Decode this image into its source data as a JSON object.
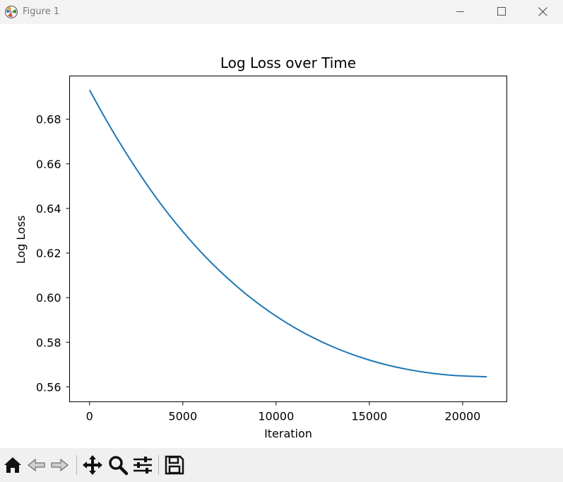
{
  "window": {
    "title": "Figure 1"
  },
  "icons": {
    "app": "matplotlib-logo-icon",
    "minimize": "minimize-icon",
    "maximize": "maximize-icon",
    "close": "close-icon"
  },
  "toolbar": {
    "buttons": [
      "home-icon",
      "back-arrow-icon",
      "forward-arrow-icon",
      "pan-move-icon",
      "zoom-magnifier-icon",
      "configure-subplots-icon",
      "save-floppy-icon"
    ]
  },
  "chart_data": {
    "type": "line",
    "title": "Log Loss over Time",
    "xlabel": "Iteration",
    "ylabel": "Log Loss",
    "xlim": [
      -1070,
      22370
    ],
    "ylim": [
      0.5533,
      0.6994
    ],
    "xticks": [
      0,
      5000,
      10000,
      15000,
      20000
    ],
    "xtick_labels": [
      "0",
      "5000",
      "10000",
      "15000",
      "20000"
    ],
    "yticks": [
      0.56,
      0.58,
      0.6,
      0.62,
      0.64,
      0.66,
      0.68
    ],
    "ytick_labels": [
      "0.56",
      "0.58",
      "0.60",
      "0.62",
      "0.64",
      "0.66",
      "0.68"
    ],
    "grid": false,
    "series": [
      {
        "color": "#1f77b4",
        "x": [
          0,
          1000,
          2000,
          3000,
          4000,
          5000,
          6000,
          7000,
          8000,
          9000,
          10000,
          11000,
          12000,
          13000,
          14000,
          15000,
          16000,
          17000,
          18000,
          19000,
          20000,
          21300
        ],
        "y": [
          0.6931,
          0.6781,
          0.6643,
          0.6516,
          0.64,
          0.6296,
          0.6202,
          0.6118,
          0.6043,
          0.5976,
          0.5917,
          0.5865,
          0.582,
          0.5781,
          0.5748,
          0.572,
          0.5697,
          0.5679,
          0.5665,
          0.5655,
          0.5649,
          0.5645
        ]
      }
    ]
  }
}
